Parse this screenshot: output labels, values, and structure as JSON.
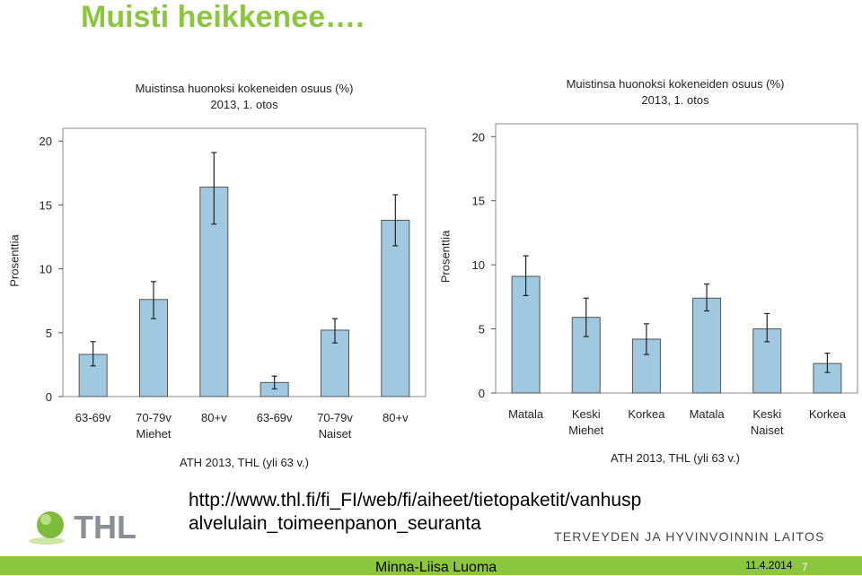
{
  "slide": {
    "title": "Muisti heikkenee….",
    "url_line1": "http://www.thl.fi/fi_FI/web/fi/aiheet/tietopaketit/vanhusp",
    "url_line2": "alvelulain_toimeenpanon_seuranta",
    "logo_text": "THL",
    "org_name": "TERVEYDEN JA HYVINVOINNIN LAITOS",
    "author": "Minna-Liisa Luoma",
    "date": "11.4.2014",
    "page_number": "7"
  },
  "colors": {
    "title": "#8cc63e",
    "bar": "#a0c8e0",
    "footer": "#8cc63e"
  },
  "chart_data": [
    {
      "type": "bar",
      "title": "Muistinsa huonoksi kokeneiden osuus (%)",
      "subtitle": "2013, 1. otos",
      "ylabel": "Prosenttia",
      "source": "ATH 2013, THL (yli 63 v.)",
      "ylim": [
        0,
        21
      ],
      "yticks": [
        0,
        5,
        10,
        15,
        20
      ],
      "categories": [
        "63-69v",
        "70-79v",
        "80+v",
        "63-69v",
        "70-79v",
        "80+v"
      ],
      "groups": [
        {
          "label": "Miehet",
          "under": 1
        },
        {
          "label": "Naiset",
          "under": 4
        }
      ],
      "values": [
        3.3,
        7.6,
        16.4,
        1.1,
        5.2,
        13.8
      ],
      "ci_low": [
        2.4,
        6.1,
        13.5,
        0.6,
        4.2,
        11.8
      ],
      "ci_high": [
        4.3,
        9.0,
        19.1,
        1.6,
        6.1,
        15.8
      ],
      "grid": false
    },
    {
      "type": "bar",
      "title": "Muistinsa huonoksi kokeneiden osuus (%)",
      "subtitle": "2013, 1. otos",
      "ylabel": "Prosenttia",
      "source": "ATH 2013, THL (yli 63 v.)",
      "ylim": [
        0,
        21
      ],
      "yticks": [
        0,
        5,
        10,
        15,
        20
      ],
      "categories": [
        "Matala",
        "Keski",
        "Korkea",
        "Matala",
        "Keski",
        "Korkea"
      ],
      "groups": [
        {
          "label": "Miehet",
          "under": 1
        },
        {
          "label": "Naiset",
          "under": 4
        }
      ],
      "values": [
        9.1,
        5.9,
        4.2,
        7.4,
        5.0,
        2.3
      ],
      "ci_low": [
        7.6,
        4.4,
        3.0,
        6.4,
        4.0,
        1.6
      ],
      "ci_high": [
        10.7,
        7.4,
        5.4,
        8.5,
        6.2,
        3.1
      ],
      "grid": false
    }
  ]
}
